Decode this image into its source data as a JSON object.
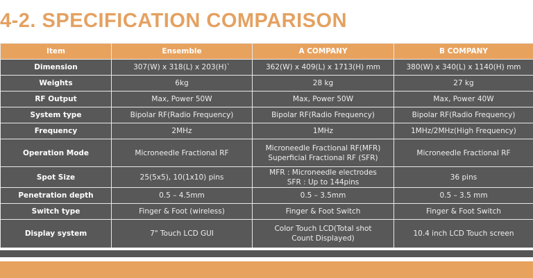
{
  "header": {
    "title": "4-2.  SPECIFICATION COMPARISON"
  },
  "table": {
    "columns": [
      "Item",
      "Ensemble",
      "A COMPANY",
      "B COMPANY"
    ],
    "rows": [
      [
        "Dimension",
        "307(W) x 318(L) x 203(H)`",
        "362(W) x 409(L) x 1713(H) mm",
        "380(W) x 340(L) x 1140(H) mm"
      ],
      [
        "Weights",
        "6kg",
        "28 kg",
        "27 kg"
      ],
      [
        "RF Output",
        "Max, Power 50W",
        "Max, Power 50W",
        "Max, Power 40W"
      ],
      [
        "System type",
        "Bipolar RF(Radio Frequency)",
        "Bipolar RF(Radio Frequency)",
        "Bipolar RF(Radio Frequency)"
      ],
      [
        "Frequency",
        "2MHz",
        "1MHz",
        "1MHz/2MHz(High Frequency)"
      ],
      [
        "Operation Mode",
        "Microneedle Fractional RF",
        [
          "Microneedle Fractional RF(MFR)",
          "Superficial Fractional RF (SFR)"
        ],
        "Microneedle Fractional RF"
      ],
      [
        "Spot Size",
        "25(5x5), 10(1x10) pins",
        [
          "MFR : Microneedle electrodes",
          "SFR : Up to 144pins"
        ],
        "36 pins"
      ],
      [
        "Penetration depth",
        "0.5 – 4.5mm",
        "0.5 – 3.5mm",
        "0.5 – 3.5 mm"
      ],
      [
        "Switch type",
        "Finger & Foot (wireless)",
        "Finger & Foot Switch",
        "Finger & Foot Switch"
      ],
      [
        "Display system",
        "7\" Touch LCD GUI",
        [
          "Color Touch LCD(Total shot",
          "Count Displayed)"
        ],
        "10.4 inch LCD Touch screen"
      ]
    ]
  }
}
